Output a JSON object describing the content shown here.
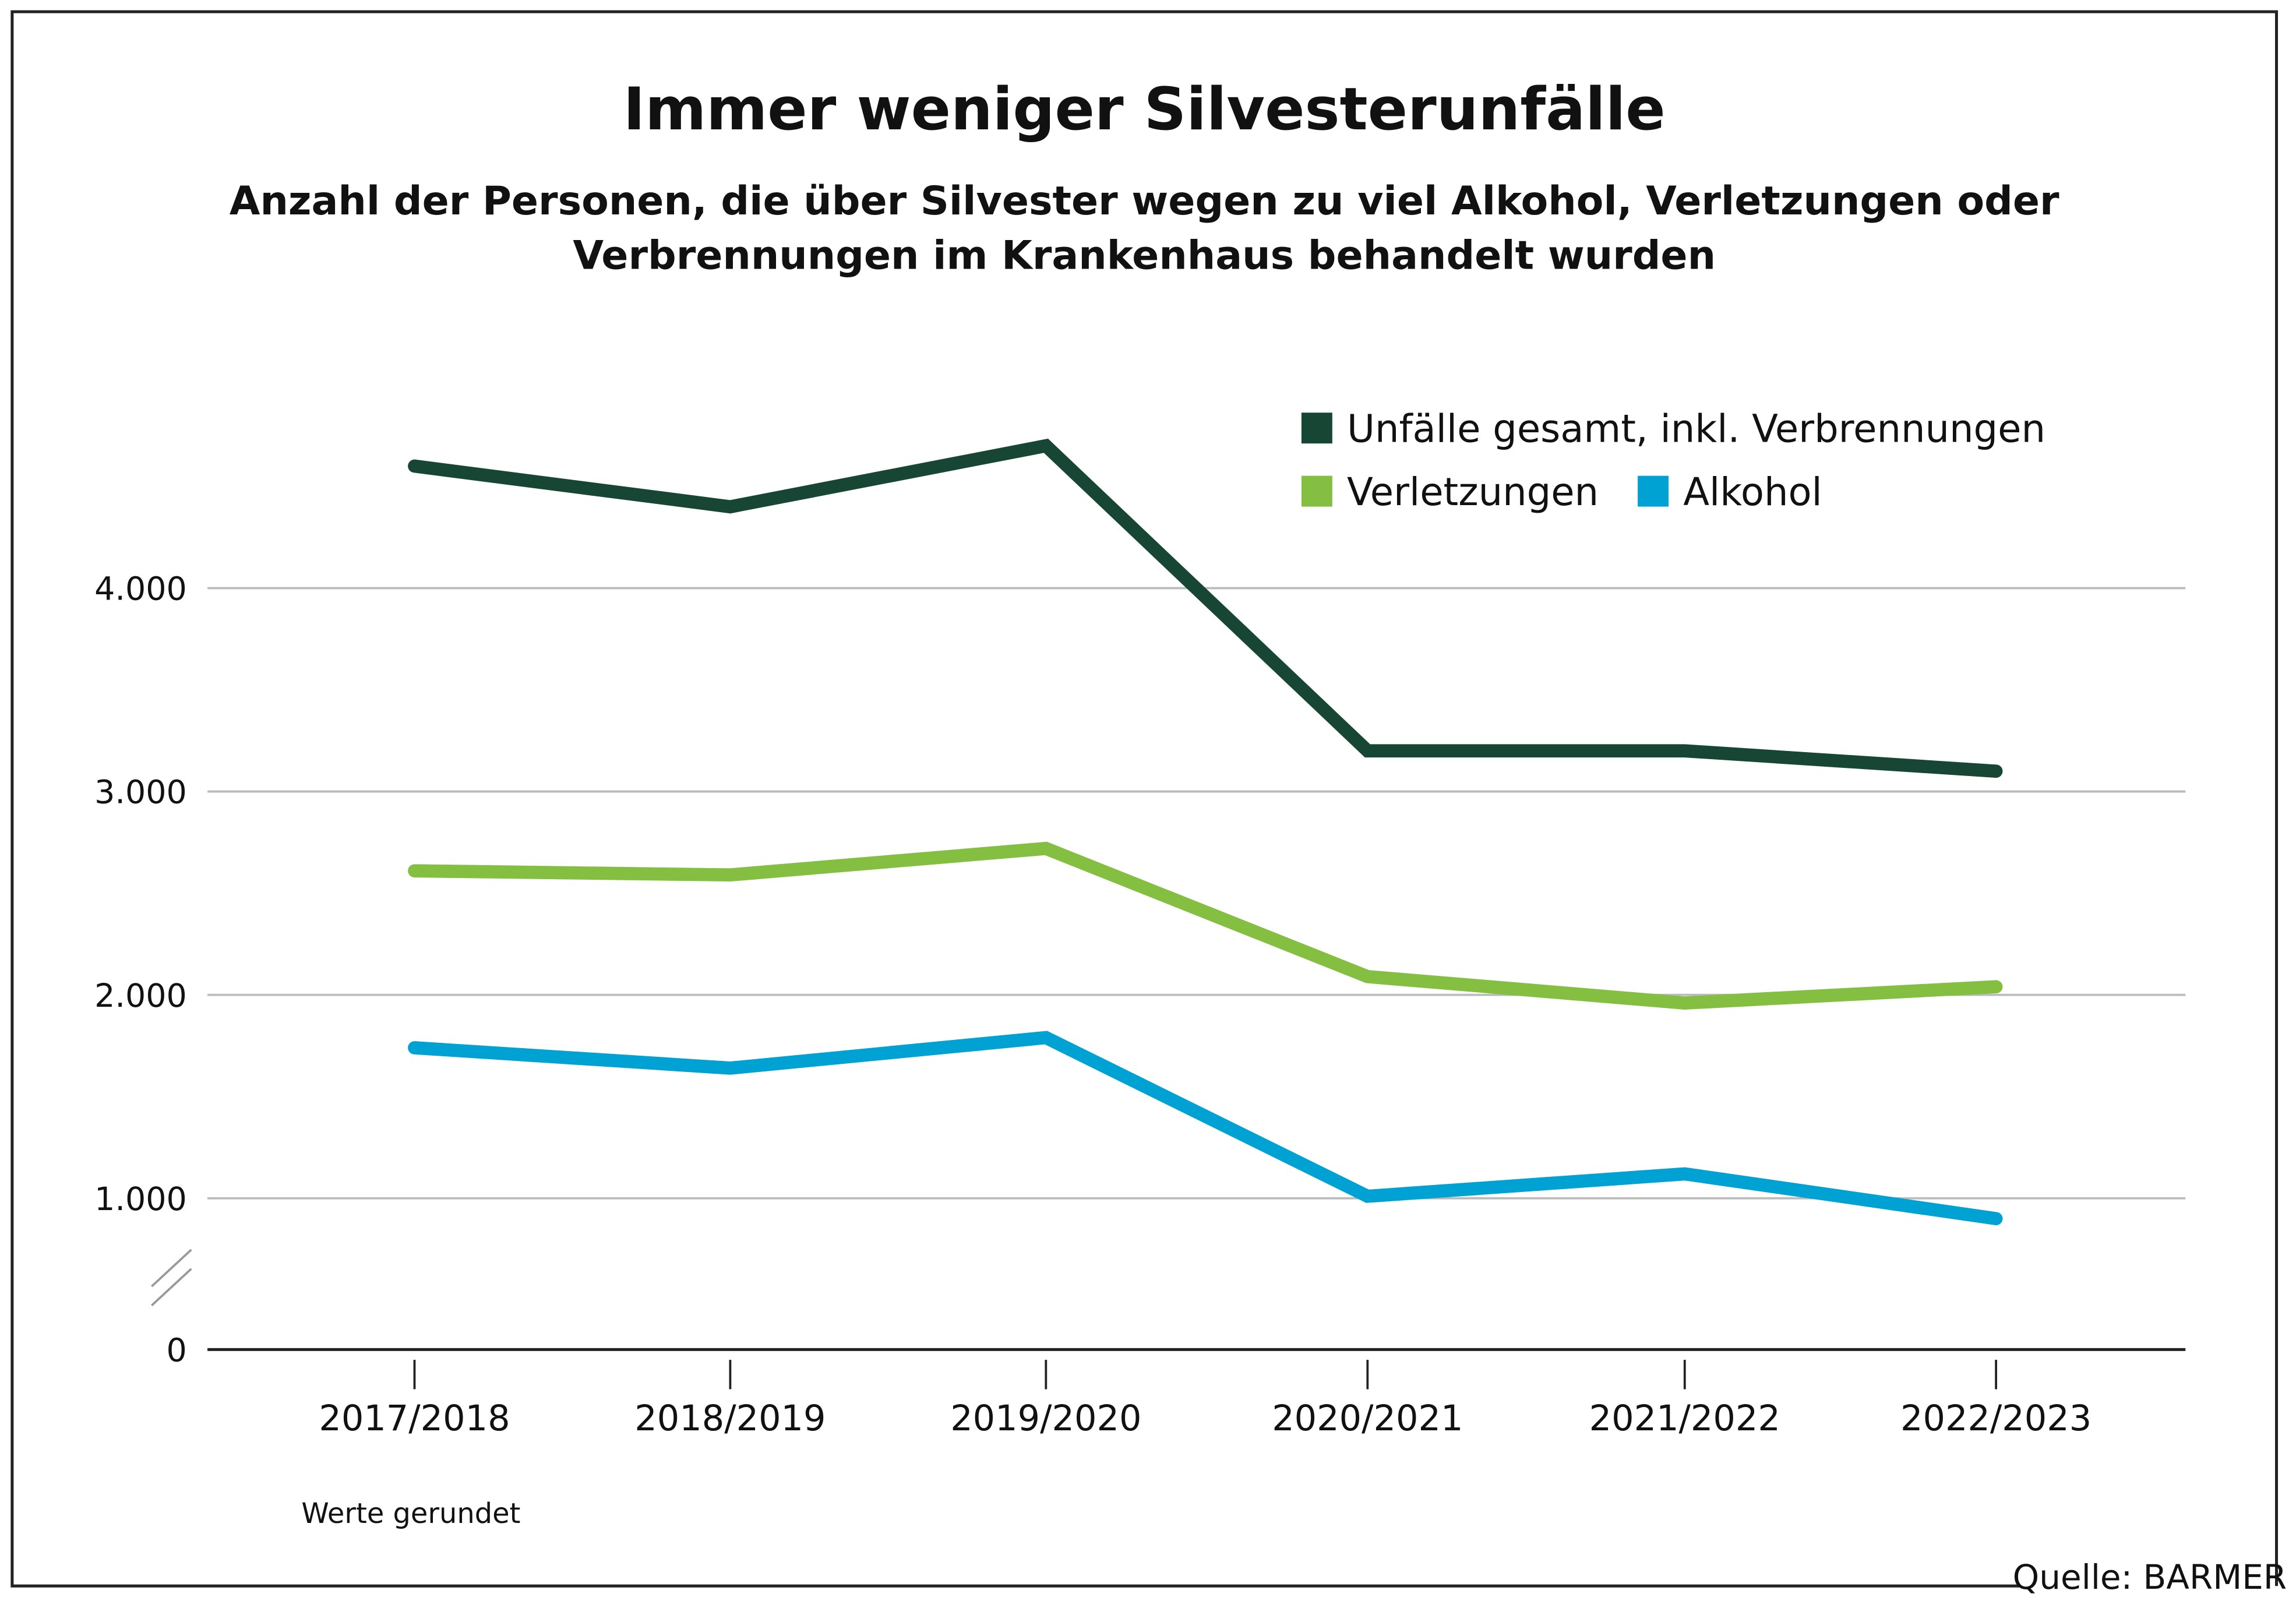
{
  "chart_data": {
    "type": "line",
    "title": "Immer weniger Silvesterunfälle",
    "subtitle_lines": [
      "Anzahl der Personen, die über Silvester wegen zu viel Alkohol, Verletzungen oder",
      "Verbrennungen im Krankenhaus behandelt wurden"
    ],
    "categories": [
      "2017/2018",
      "2018/2019",
      "2019/2020",
      "2020/2021",
      "2021/2022",
      "2022/2023"
    ],
    "y_ticks": [
      0,
      1000,
      2000,
      3000,
      4000
    ],
    "y_tick_labels": [
      "0",
      "1.000",
      "2.000",
      "3.000",
      "4.000"
    ],
    "y_axis_break": true,
    "grid": true,
    "legend_placement": "top-right",
    "series": [
      {
        "name": "Unfälle gesamt, inkl. Verbrennungen",
        "color": "#174734",
        "values": [
          4600,
          4400,
          4700,
          3200,
          3200,
          3100
        ]
      },
      {
        "name": "Verletzungen",
        "color": "#84bf41",
        "values": [
          2610,
          2590,
          2720,
          2090,
          1960,
          2040
        ]
      },
      {
        "name": "Alkohol",
        "color": "#00a1d3",
        "values": [
          1740,
          1640,
          1790,
          1010,
          1120,
          900
        ]
      }
    ],
    "note": "Werte gerundet",
    "source": "Quelle: BARMER"
  }
}
